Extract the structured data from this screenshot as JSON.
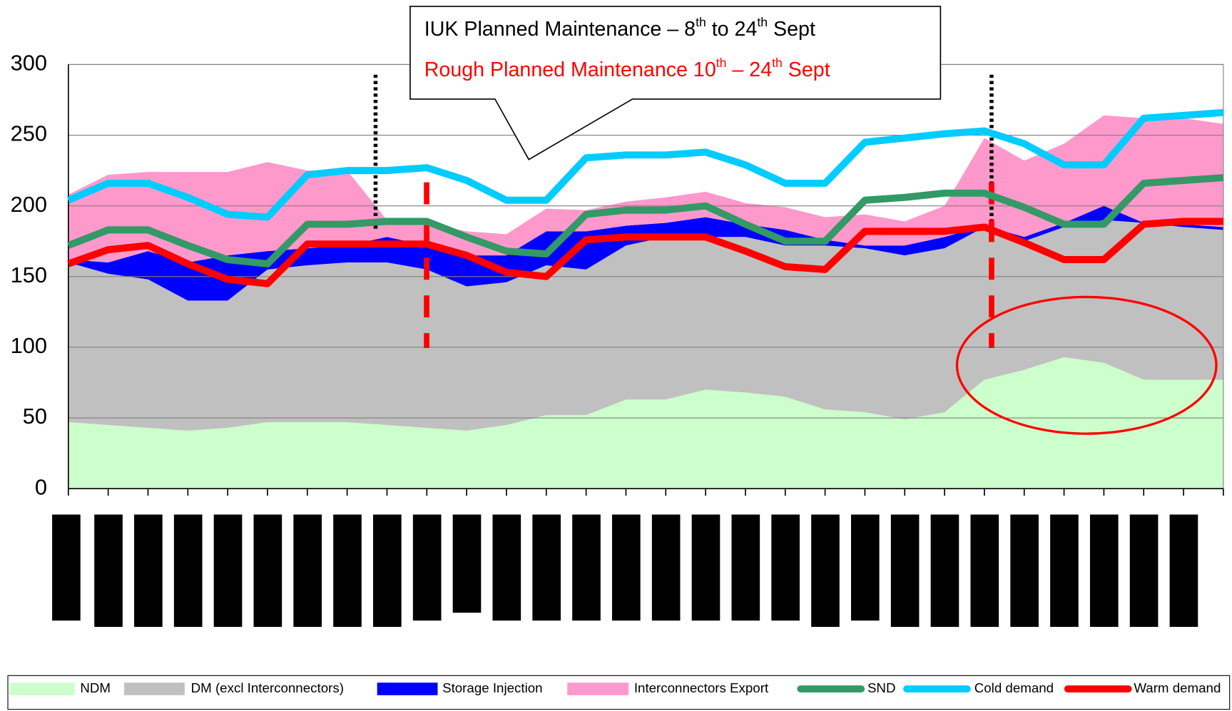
{
  "chart_data": {
    "type": "area",
    "stacked": true,
    "categories": [
      null,
      null,
      null,
      null,
      null,
      null,
      null,
      null,
      null,
      null,
      null,
      null,
      null,
      null,
      null,
      null,
      null,
      null,
      null,
      null,
      null,
      null,
      null,
      null,
      null,
      null,
      null,
      null,
      null,
      null
    ],
    "ylim": [
      0,
      300
    ],
    "yticks": [
      0,
      50,
      100,
      150,
      200,
      250,
      300
    ],
    "grid": true,
    "annotations": [
      {
        "parts": [
          "IUK Planned Maintenance – 8",
          "th",
          " to 24",
          "th",
          " Sept"
        ],
        "color": "#000000"
      },
      {
        "parts": [
          "Rough Planned Maintenance 10",
          "th",
          " – 24",
          "th",
          " Sept"
        ],
        "color": "#ff0000"
      }
    ],
    "series": [
      {
        "name": "NDM",
        "kind": "area",
        "color": "#ccffcc",
        "values": [
          47,
          45,
          43,
          41,
          43,
          47,
          47,
          47,
          45,
          43,
          41,
          45,
          52,
          52,
          63,
          63,
          70,
          68,
          65,
          56,
          54,
          49,
          54,
          77,
          84,
          93,
          89,
          77,
          77,
          77
        ]
      },
      {
        "name": "DM (excl Interconnectors)",
        "kind": "area",
        "color": "#c0c0c0",
        "values": [
          113,
          107,
          105,
          92,
          90,
          108,
          111,
          113,
          115,
          112,
          102,
          101,
          106,
          103,
          109,
          115,
          108,
          110,
          107,
          116,
          116,
          116,
          116,
          108,
          91,
          92,
          101,
          111,
          108,
          106
        ]
      },
      {
        "name": "Storage Injection",
        "kind": "area",
        "color": "#0000ff",
        "values": [
          2,
          8,
          20,
          27,
          32,
          13,
          12,
          12,
          18,
          17,
          22,
          19,
          24,
          27,
          14,
          10,
          14,
          9,
          11,
          4,
          2,
          7,
          8,
          1,
          3,
          3,
          10,
          0,
          2,
          2
        ]
      },
      {
        "name": "Interconnectors Export",
        "kind": "area",
        "color": "#ff99cc",
        "values": [
          46,
          62,
          56,
          64,
          59,
          63,
          55,
          53,
          12,
          16,
          17,
          15,
          16,
          15,
          17,
          18,
          18,
          15,
          16,
          16,
          22,
          17,
          22,
          62,
          54,
          56,
          64,
          74,
          75,
          73
        ]
      },
      {
        "name": "SND",
        "kind": "line",
        "color": "#339966",
        "values": [
          172,
          183,
          183,
          172,
          162,
          159,
          187,
          187,
          189,
          189,
          178,
          168,
          166,
          194,
          197,
          197,
          200,
          187,
          175,
          175,
          204,
          206,
          209,
          209,
          199,
          187,
          187,
          216,
          218,
          220
        ]
      },
      {
        "name": "Cold demand",
        "kind": "line",
        "color": "#00ccff",
        "values": [
          204,
          216,
          216,
          206,
          194,
          192,
          222,
          225,
          225,
          227,
          218,
          204,
          204,
          234,
          236,
          236,
          238,
          229,
          216,
          216,
          245,
          248,
          251,
          253,
          244,
          229,
          229,
          262,
          264,
          266
        ]
      },
      {
        "name": "Warm demand",
        "kind": "line",
        "color": "#ff0000",
        "values": [
          159,
          169,
          172,
          159,
          148,
          145,
          173,
          173,
          173,
          173,
          165,
          153,
          150,
          176,
          178,
          178,
          178,
          168,
          157,
          155,
          182,
          182,
          182,
          185,
          174,
          162,
          162,
          187,
          189,
          189
        ]
      }
    ]
  }
}
